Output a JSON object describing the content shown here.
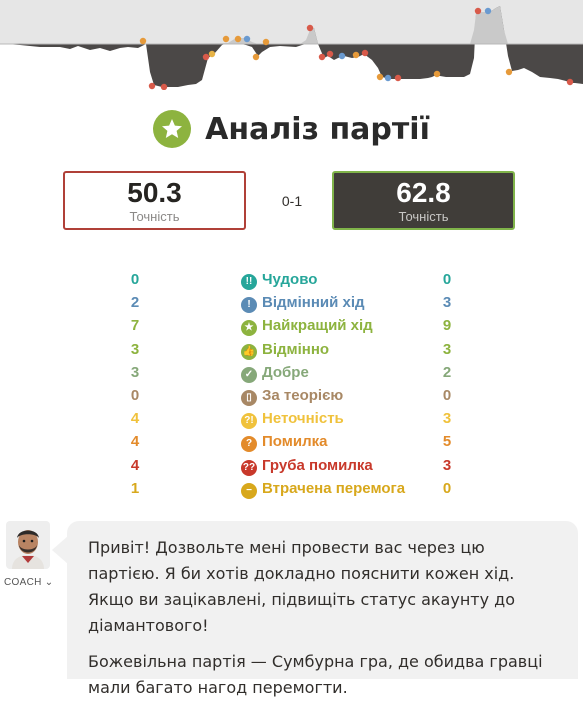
{
  "graph": {
    "colors": {
      "top_band": "#e6e6e6",
      "bottom_fill": "#ffffff",
      "curve_fill": "#4b4847",
      "positive_fill": "#c9c9c9",
      "curve_line": "#8a8786",
      "mid_line": "#b8b8b8"
    },
    "marker_colors": {
      "orange": "#e69a3a",
      "red": "#d85a4a",
      "blue": "#6a9ad0",
      "yellow": "#e7b346",
      "green": "#8db33f"
    }
  },
  "title": {
    "text": "Аналіз партії",
    "icon": "star-icon",
    "icon_color": "#8db33f"
  },
  "white": {
    "accuracy": "50.3",
    "label": "Точність",
    "border_color": "#b04038"
  },
  "black": {
    "accuracy": "62.8",
    "label": "Точність",
    "border_color": "#80b44a"
  },
  "score": "0-1",
  "stats": [
    {
      "white": "0",
      "label": "Чудово",
      "black": "0",
      "icon": "brilliant-icon",
      "glyph": "!!",
      "color": "#26a69a"
    },
    {
      "white": "2",
      "label": "Відмінний хід",
      "black": "3",
      "icon": "great-move-icon",
      "glyph": "!",
      "color": "#5b8bb5"
    },
    {
      "white": "7",
      "label": "Найкращий хід",
      "black": "9",
      "icon": "best-move-icon",
      "glyph": "★",
      "color": "#8db33f"
    },
    {
      "white": "3",
      "label": "Відмінно",
      "black": "3",
      "icon": "excellent-icon",
      "glyph": "👍",
      "color": "#8db33f"
    },
    {
      "white": "3",
      "label": "Добре",
      "black": "2",
      "icon": "good-icon",
      "glyph": "✓",
      "color": "#86a879"
    },
    {
      "white": "0",
      "label": "За теорією",
      "black": "0",
      "icon": "book-icon",
      "glyph": "▯",
      "color": "#a88865"
    },
    {
      "white": "4",
      "label": "Неточність",
      "black": "3",
      "icon": "inaccuracy-icon",
      "glyph": "?!",
      "color": "#f0c23c"
    },
    {
      "white": "4",
      "label": "Помилка",
      "black": "5",
      "icon": "mistake-icon",
      "glyph": "?",
      "color": "#e38b2b"
    },
    {
      "white": "4",
      "label": "Груба помилка",
      "black": "3",
      "icon": "blunder-icon",
      "glyph": "??",
      "color": "#c8392b"
    },
    {
      "white": "1",
      "label": "Втрачена перемога",
      "black": "0",
      "icon": "missed-win-icon",
      "glyph": "−",
      "color": "#d8a81c"
    }
  ],
  "coach": {
    "label": "COACH ⌄",
    "avatar": "coach-avatar",
    "messages": [
      "Привіт! Дозвольте мені провести вас через цю партією. Я би хотів докладно пояснити кожен хід. Якщо ви зацікавлені, підвищіть статус акаунту до діамантового!",
      "Божевільна партія — Сумбурна гра, де обидва гравці мали багато нагод перемогти."
    ]
  }
}
